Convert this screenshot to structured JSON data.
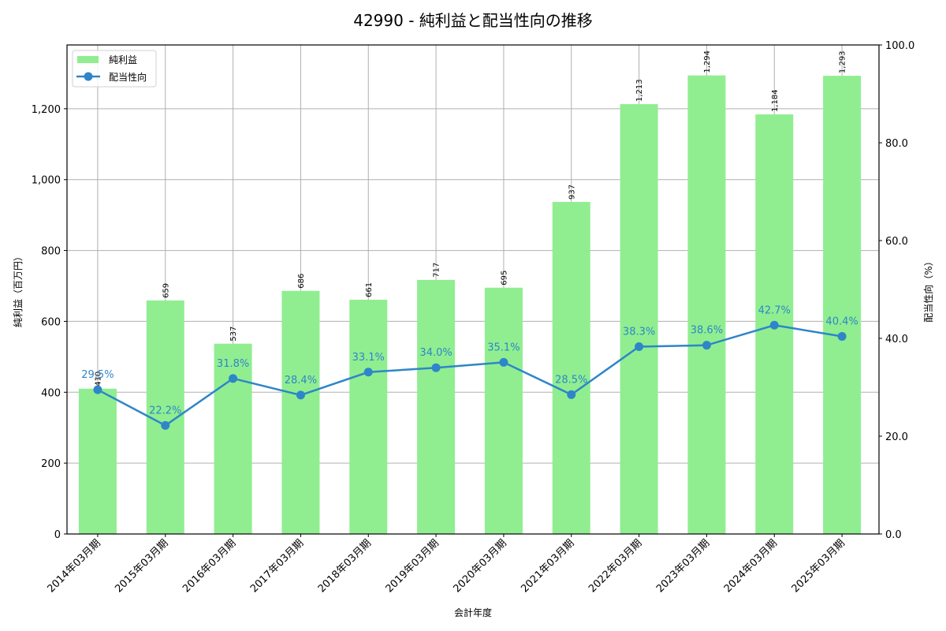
{
  "chart_data": {
    "type": "bar",
    "title": "42990 - 純利益と配当性向の推移",
    "xlabel": "会計年度",
    "ylabel": "純利益（百万円）",
    "y2label": "配当性向（%）",
    "categories": [
      "2014年03月期",
      "2015年03月期",
      "2016年03月期",
      "2017年03月期",
      "2018年03月期",
      "2019年03月期",
      "2020年03月期",
      "2021年03月期",
      "2022年03月期",
      "2023年03月期",
      "2024年03月期",
      "2025年03月期"
    ],
    "series": [
      {
        "name": "純利益",
        "type": "bar",
        "axis": "left",
        "color": "#90ee90",
        "values": [
          410,
          659,
          537,
          686,
          661,
          717,
          695,
          937,
          1213,
          1294,
          1184,
          1293
        ],
        "labels": [
          "410",
          "659",
          "537",
          "686",
          "661",
          "717",
          "695",
          "937",
          "1,213",
          "1,294",
          "1,184",
          "1,293"
        ]
      },
      {
        "name": "配当性向",
        "type": "line",
        "axis": "right",
        "color": "#2e86c8",
        "values": [
          29.5,
          22.2,
          31.8,
          28.4,
          33.1,
          34.0,
          35.1,
          28.5,
          38.3,
          38.6,
          42.7,
          40.4
        ],
        "labels": [
          "29.5%",
          "22.2%",
          "31.8%",
          "28.4%",
          "33.1%",
          "34.0%",
          "35.1%",
          "28.5%",
          "38.3%",
          "38.6%",
          "42.7%",
          "40.4%"
        ]
      }
    ],
    "ylim": [
      0,
      1380
    ],
    "yticks": [
      0,
      200,
      400,
      600,
      800,
      1000,
      1200
    ],
    "yticklabels": [
      "0",
      "200",
      "400",
      "600",
      "800",
      "1,000",
      "1,200"
    ],
    "y2lim": [
      0,
      100
    ],
    "y2ticks": [
      0,
      20,
      40,
      60,
      80,
      100
    ],
    "y2ticklabels": [
      "0.0",
      "20.0",
      "40.0",
      "60.0",
      "80.0",
      "100.0"
    ],
    "grid": true,
    "legend_position": "upper left"
  }
}
